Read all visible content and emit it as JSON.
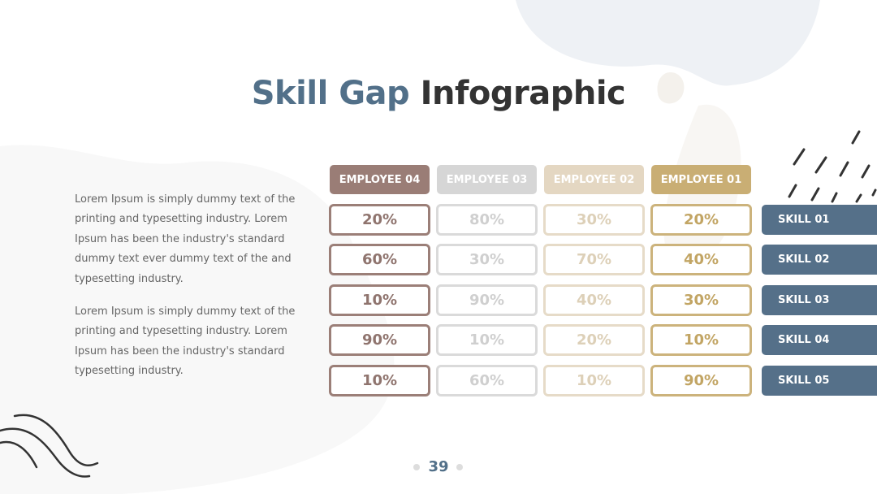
{
  "title": {
    "highlight": "Skill Gap",
    "rest": "Infographic"
  },
  "paragraphs": [
    "Lorem Ipsum is simply dummy text of the printing and typesetting industry. Lorem Ipsum has been the industry's standard dummy text ever dummy text of the and typesetting industry.",
    "Lorem Ipsum is simply dummy text of the printing and typesetting industry. Lorem Ipsum has been the industry's standard typesetting industry."
  ],
  "table": {
    "headers": [
      "EMPLOYEE 04",
      "EMPLOYEE 03",
      "EMPLOYEE 02",
      "EMPLOYEE 01"
    ],
    "rows": [
      {
        "values": [
          "20%",
          "80%",
          "30%",
          "20%"
        ],
        "skill": "SKILL 01"
      },
      {
        "values": [
          "60%",
          "30%",
          "70%",
          "40%"
        ],
        "skill": "SKILL 02"
      },
      {
        "values": [
          "10%",
          "90%",
          "40%",
          "30%"
        ],
        "skill": "SKILL 03"
      },
      {
        "values": [
          "90%",
          "10%",
          "20%",
          "10%"
        ],
        "skill": "SKILL 04"
      },
      {
        "values": [
          "10%",
          "60%",
          "10%",
          "90%"
        ],
        "skill": "SKILL 05"
      }
    ]
  },
  "page_number": "39"
}
